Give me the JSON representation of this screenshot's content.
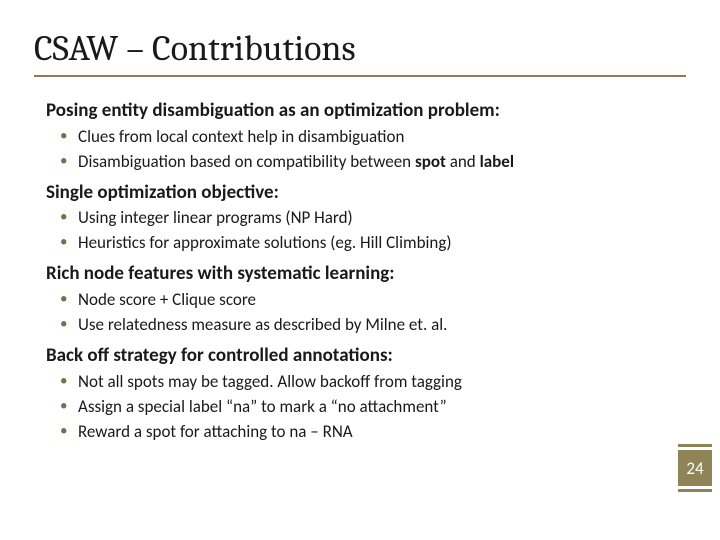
{
  "slide": {
    "title": "CSAW – Contributions",
    "accent_color": "#8a7d5a",
    "bullet_color": "#7a6f49",
    "badge_bg": "#8f8458",
    "badge_text_color": "#ffffff",
    "page_number": "24",
    "sections": [
      {
        "heading": "Posing entity disambiguation as an optimization problem:",
        "bullets": [
          {
            "text": "Clues from local context help in disambiguation"
          },
          {
            "html": "Disambiguation based on compatibility between <b>spot</b> and <b>label</b>"
          }
        ]
      },
      {
        "heading": "Single optimization objective:",
        "bullets": [
          {
            "text": "Using integer linear programs (NP Hard)"
          },
          {
            "text": "Heuristics for approximate solutions (eg. Hill Climbing)"
          }
        ]
      },
      {
        "heading": "Rich node features with systematic learning:",
        "bullets": [
          {
            "text": "Node score + Clique score"
          },
          {
            "text": "Use relatedness measure as described by Milne et. al."
          }
        ]
      },
      {
        "heading": "Back off strategy for controlled annotations:",
        "bullets": [
          {
            "text": "Not all spots may be tagged. Allow backoff from tagging"
          },
          {
            "text": "Assign a special label “na” to mark a “no attachment”"
          },
          {
            "text": "Reward a spot for attaching to na – RNA"
          }
        ]
      }
    ]
  }
}
